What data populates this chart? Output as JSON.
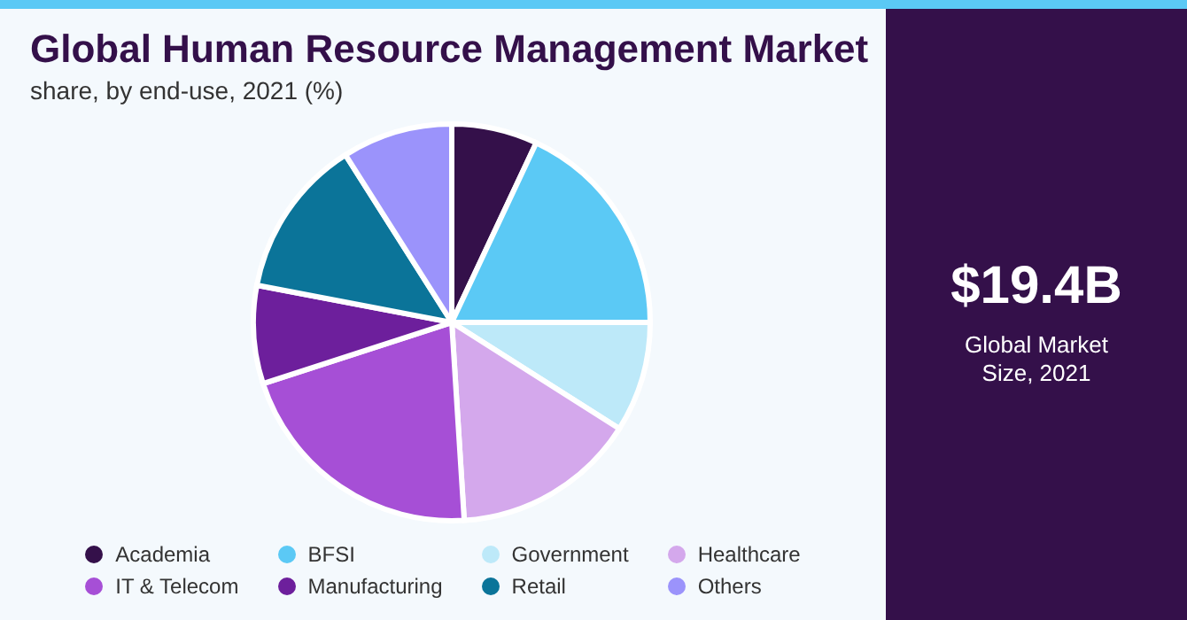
{
  "chart_data": {
    "type": "pie",
    "title": "Global Human Resource Management Market",
    "subtitle": "share, by end-use, 2021 (%)",
    "categories": [
      "Academia",
      "BFSI",
      "Government",
      "Healthcare",
      "IT & Telecom",
      "Manufacturing",
      "Retail",
      "Others"
    ],
    "values": [
      7,
      18,
      9,
      15,
      21,
      8,
      13,
      9
    ],
    "colors": [
      "#34104a",
      "#5bc9f5",
      "#bde9f9",
      "#d4a8ec",
      "#a64fd6",
      "#6d1f9c",
      "#0b7499",
      "#9b93fb"
    ],
    "legend": "bottom",
    "annotations": [
      "$19.4B",
      "Global Market Size, 2021"
    ]
  }
}
